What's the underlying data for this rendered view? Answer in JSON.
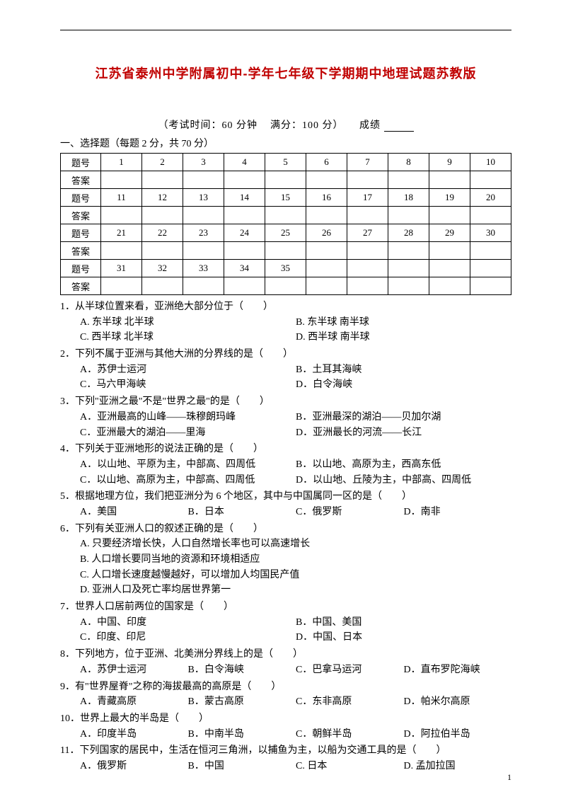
{
  "title": "江苏省泰州中学附属初中-学年七年级下学期期中地理试题苏教版",
  "exam_meta": {
    "time_label": "（考试时间：60 分钟",
    "full_label": "满分：100 分）",
    "score_label": "成绩"
  },
  "section1_heading": "一、选择题（每题 2 分，共 70 分）",
  "grid": {
    "row_label_num": "题号",
    "row_label_ans": "答案",
    "nums": [
      [
        "1",
        "2",
        "3",
        "4",
        "5",
        "6",
        "7",
        "8",
        "9",
        "10"
      ],
      [
        "11",
        "12",
        "13",
        "14",
        "15",
        "16",
        "17",
        "18",
        "19",
        "20"
      ],
      [
        "21",
        "22",
        "23",
        "24",
        "25",
        "26",
        "27",
        "28",
        "29",
        "30"
      ],
      [
        "31",
        "32",
        "33",
        "34",
        "35",
        "",
        "",
        "",
        "",
        ""
      ]
    ]
  },
  "questions": [
    {
      "num": "1．",
      "stem": "从半球位置来看，亚洲绝大部分位于（　　）",
      "layout": "2col",
      "opts": [
        "A. 东半球  北半球",
        "B. 东半球  南半球",
        "C. 西半球  北半球",
        "D. 西半球  南半球"
      ]
    },
    {
      "num": "2．",
      "stem": "下列不属于亚洲与其他大洲的分界线的是（　　）",
      "layout": "2col",
      "opts": [
        "A．苏伊士运河",
        "B．土耳其海峡",
        "C．马六甲海峡",
        "D．白令海峡"
      ]
    },
    {
      "num": "3．",
      "stem": "下列\"亚洲之最\"不是\"世界之最\"的是（　　）",
      "layout": "2col",
      "opts": [
        "A．亚洲最高的山峰——珠穆朗玛峰",
        "B．亚洲最深的湖泊——贝加尔湖",
        "C．亚洲最大的湖泊——里海",
        "D．亚洲最长的河流——长江"
      ]
    },
    {
      "num": "4．",
      "stem": "下列关于亚洲地形的说法正确的是（　　）",
      "layout": "2col",
      "opts": [
        "A．以山地、平原为主，中部高、四周低",
        "B．以山地、高原为主，西高东低",
        "C．以山地、高原为主，中部高、四周低",
        "D．以山地、丘陵为主，中部高、四周低"
      ]
    },
    {
      "num": "5．",
      "stem": "根据地理方位，我们把亚洲分为 6 个地区，其中与中国属同一区的是（　　）",
      "layout": "4col",
      "opts": [
        "A．美国",
        "B．日本",
        "C．俄罗斯",
        "D．南非"
      ]
    },
    {
      "num": "6．",
      "stem": "下列有关亚洲人口的叙述正确的是（　　）",
      "layout": "1col",
      "opts": [
        "A. 只要经济增长快，人口自然增长率也可以高速增长",
        "B. 人口增长要同当地的资源和环境相适应",
        "C. 人口增长速度越慢越好，可以增加人均国民产值",
        "D. 亚洲人口及死亡率均居世界第一"
      ]
    },
    {
      "num": "7．",
      "stem": "世界人口居前两位的国家是（　　）",
      "layout": "2col",
      "opts": [
        "A．中国、印度",
        "B．中国、美国",
        "C．印度、印尼",
        "D．中国、日本"
      ]
    },
    {
      "num": "8．",
      "stem": "下列地方，位于亚洲、北美洲分界线上的是（　　）",
      "layout": "4col",
      "opts": [
        "A．苏伊士运河",
        "B．白令海峡",
        "C．巴拿马运河",
        "D．直布罗陀海峡"
      ]
    },
    {
      "num": "9．",
      "stem": "有\"世界屋脊\"之称的海拔最高的高原是（　　）",
      "layout": "4col",
      "opts": [
        "A．青藏高原",
        "B．蒙古高原",
        "C．东非高原",
        "D．帕米尔高原"
      ]
    },
    {
      "num": "10．",
      "stem": "世界上最大的半岛是（　　）",
      "layout": "4col",
      "opts": [
        "A．印度半岛",
        "B．中南半岛",
        "C．朝鲜半岛",
        "D．阿拉伯半岛"
      ]
    },
    {
      "num": "11．",
      "stem": "下列国家的居民中，生活在恒河三角洲，以捕鱼为主，以船为交通工具的是（　　）",
      "layout": "4col",
      "opts": [
        "A．俄罗斯",
        "B．中国",
        "C. 日本",
        "D. 孟加拉国"
      ]
    }
  ],
  "page_number": "1"
}
